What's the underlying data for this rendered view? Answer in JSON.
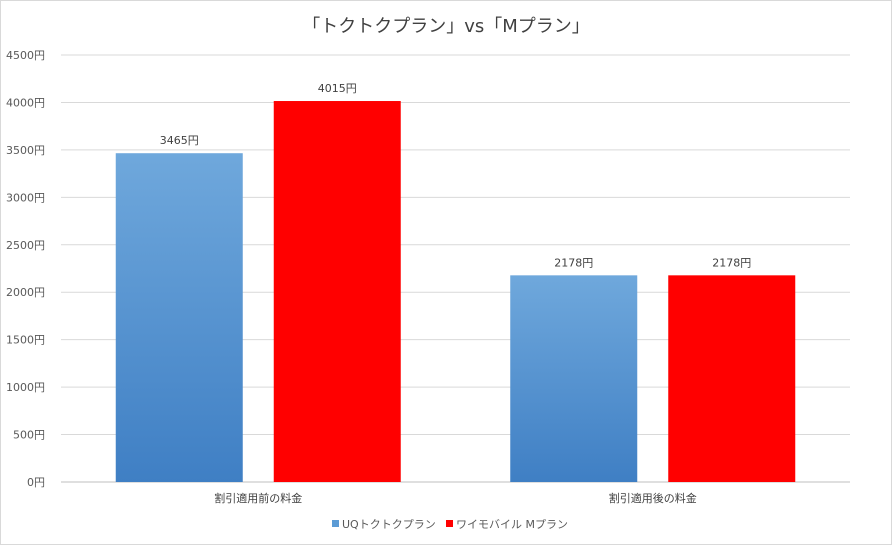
{
  "chart_data": {
    "type": "bar",
    "title": "「トクトクプラン」vs「Mプラン」",
    "categories": [
      "割引適用前の料金",
      "割引適用後の料金"
    ],
    "series": [
      {
        "name": "UQトクトクプラン",
        "values": [
          3465,
          2178
        ],
        "color": "#5b9bd5"
      },
      {
        "name": "ワイモバイル Mプラン",
        "values": [
          4015,
          2178
        ],
        "color": "#ff0000"
      }
    ],
    "data_labels": [
      [
        "3465円",
        "2178円"
      ],
      [
        "4015円",
        "2178円"
      ]
    ],
    "ylim": [
      0,
      4500
    ],
    "yticks": [
      0,
      500,
      1000,
      1500,
      2000,
      2500,
      3000,
      3500,
      4000,
      4500
    ],
    "ytick_labels": [
      "0円",
      "500円",
      "1000円",
      "1500円",
      "2000円",
      "2500円",
      "3000円",
      "3500円",
      "4000円",
      "4500円"
    ],
    "grid": true,
    "legend_position": "bottom"
  }
}
